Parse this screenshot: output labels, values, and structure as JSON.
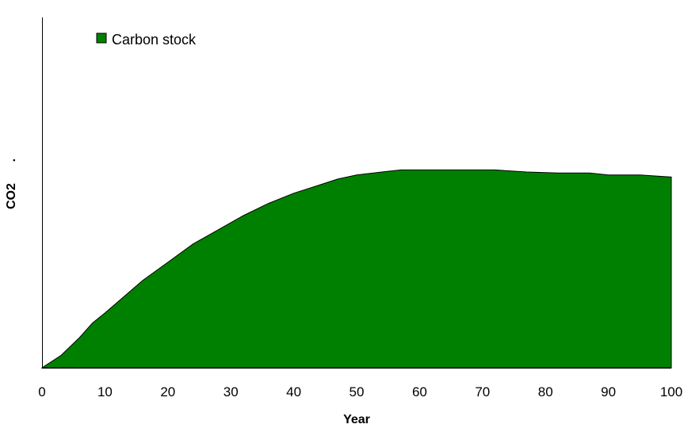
{
  "chart_data": {
    "type": "area",
    "xlabel": "Year",
    "ylabel": "CO2      .",
    "xlim": [
      0,
      100
    ],
    "ylim": [
      0,
      100
    ],
    "x_ticks": [
      "0",
      "10",
      "20",
      "30",
      "40",
      "50",
      "60",
      "70",
      "80",
      "90",
      "100"
    ],
    "grid": false,
    "legend_position": "top-left",
    "series": [
      {
        "name": "Carbon stock",
        "color": "#008000",
        "x": [
          0,
          3,
          6,
          8,
          10,
          13,
          16,
          20,
          24,
          28,
          32,
          36,
          40,
          44,
          47,
          50,
          54,
          57,
          62,
          67,
          72,
          77,
          82,
          87,
          90,
          95,
          100
        ],
        "y": [
          0,
          6,
          15,
          22,
          27,
          35,
          43,
          52,
          61,
          68,
          75,
          81,
          86,
          90,
          93,
          95,
          96.5,
          97.5,
          97.5,
          97.5,
          97.5,
          96.5,
          96,
          96,
          95,
          95,
          94
        ]
      }
    ]
  }
}
